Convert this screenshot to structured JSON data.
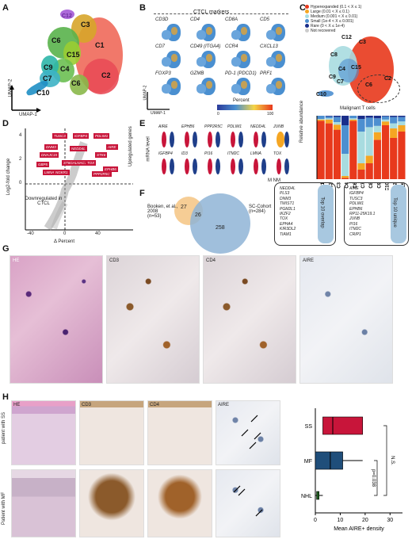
{
  "panels": {
    "A": "A",
    "B": "B",
    "C": "C",
    "D": "D",
    "E": "E",
    "F": "F",
    "G": "G",
    "H": "H"
  },
  "panelA": {
    "clusters": [
      "C12",
      "C3",
      "C6",
      "C1",
      "C15",
      "C9",
      "C4",
      "C7",
      "C2",
      "C6",
      "C10"
    ],
    "axis_x": "UMAP-1",
    "axis_y": "UMAP-2"
  },
  "panelB": {
    "title": "CTCL markers",
    "genes": [
      "CD3D",
      "CD4",
      "CD8A",
      "CD5",
      "CD7",
      "CD49 (ITGA4)",
      "CCR4",
      "CXCL13",
      "FOXP3",
      "GZMB",
      "PD-1 (PDCD1)",
      "PRF1"
    ],
    "axis_x": "UMAP-1",
    "axis_y": "UMAP-2",
    "legend_title": "Percent",
    "legend_min": "0",
    "legend_max": "100"
  },
  "panelC": {
    "legend": [
      {
        "label": "Hyperexpanded (0.1 < X ≤ 1)",
        "color": "#e8391c"
      },
      {
        "label": "Large (0.01 < X ≤ 0.1)",
        "color": "#f5a623"
      },
      {
        "label": "Medium (0.001 < X ≤ 0.01)",
        "color": "#a8dce0"
      },
      {
        "label": "Small (1e-4 < X ≤ 0.001)",
        "color": "#4d8fd0"
      },
      {
        "label": "Rare (0 < X ≤ 1e-4)",
        "color": "#1a2e8a"
      },
      {
        "label": "Not recovered",
        "color": "#cccccc"
      }
    ],
    "umap_labels": [
      "C12",
      "C3",
      "C8",
      "C4",
      "C15",
      "C9",
      "C7",
      "C10",
      "C2",
      "C6"
    ],
    "annotation": "Malignant T cells",
    "ylabel": "Relative abundance"
  },
  "chart_data": [
    {
      "type": "bar",
      "stacked": true,
      "ylabel": "Relative abundance",
      "ylim": [
        0,
        1
      ],
      "categories": [
        "C1",
        "C2",
        "C3",
        "C4",
        "C6",
        "C7",
        "C8",
        "C9",
        "C10",
        "C12",
        "C15"
      ],
      "series": [
        {
          "name": "Hyperexpanded",
          "values": [
            0.92,
            0.88,
            0.78,
            0.02,
            0.92,
            0.15,
            0.25,
            0.62,
            0.85,
            0.65,
            0.75
          ]
        },
        {
          "name": "Large",
          "values": [
            0.02,
            0.06,
            0.08,
            0.03,
            0.02,
            0.1,
            0.12,
            0.12,
            0.06,
            0.15,
            0.1
          ]
        },
        {
          "name": "Medium",
          "values": [
            0.01,
            0.02,
            0.04,
            0.35,
            0.02,
            0.5,
            0.45,
            0.1,
            0.03,
            0.08,
            0.06
          ]
        },
        {
          "name": "Small",
          "values": [
            0.05,
            0.03,
            0.08,
            0.45,
            0.04,
            0.2,
            0.15,
            0.12,
            0.05,
            0.1,
            0.07
          ]
        },
        {
          "name": "Rare",
          "values": [
            0,
            0.01,
            0.02,
            0.15,
            0,
            0.05,
            0.03,
            0.04,
            0.01,
            0.02,
            0.02
          ]
        }
      ]
    },
    {
      "type": "box",
      "orientation": "horizontal",
      "xlabel": "Mean AIRE+ density",
      "xlim": [
        0,
        35
      ],
      "xticks": [
        0,
        10,
        20,
        30
      ],
      "categories": [
        "SS",
        "MF",
        "NHL"
      ],
      "boxes": [
        {
          "name": "SS",
          "min": 3,
          "q1": 3,
          "median": 7,
          "q3": 19,
          "max": 19,
          "color": "#c8153a"
        },
        {
          "name": "MF",
          "min": 0,
          "q1": 0,
          "median": 6,
          "q3": 11,
          "max": 19,
          "color": "#1f4e7a"
        },
        {
          "name": "NHL",
          "min": 0,
          "q1": 0.5,
          "median": 1,
          "q3": 1.5,
          "max": 3,
          "color": "#3aa53a"
        }
      ],
      "annotations": [
        "N.S.",
        "p=0.038"
      ]
    }
  ],
  "panelD": {
    "xlabel": "Δ Percent",
    "ylabel": "Log2-fold change",
    "xticks": [
      "-40",
      "0",
      "40"
    ],
    "yticks": [
      "0",
      "2",
      "4"
    ],
    "up_label": "Upregulated genes",
    "down_label": "Downregulated in CTCL",
    "genes": [
      "TUSC3",
      "IGFBP4",
      "PDLIM1",
      "DNM3",
      "AIRE",
      "NEDD4L",
      "DNAJC15",
      "STK6",
      "GBP5",
      "ST6GALNAC1",
      "TOX",
      "LMNA",
      "NGKR1",
      "EPHB6",
      "PPP2R5C"
    ]
  },
  "panelE": {
    "ylabel": "mRNA level",
    "top": [
      "AIRE",
      "EPHB6",
      "PPP2R5C",
      "PDLIM1",
      "NEDD4L",
      "JUNB"
    ],
    "bottom": [
      "IGFBP4",
      "ID3",
      "PI16",
      "ITM2C",
      "LMNA",
      "TOX"
    ],
    "xlabels": [
      "M",
      "NM",
      "M",
      "NM",
      "M",
      "NM"
    ]
  },
  "panelF": {
    "left_label": "Booken, et al., 2008",
    "left_n": "(n=53)",
    "right_label": "SC-Cohort",
    "right_n": "(n=284)",
    "left_only": "27",
    "overlap": "26",
    "right_only": "258",
    "overlap_title": "Top 10 overlap",
    "overlap_genes": [
      "NEDD4L",
      "PLS3",
      "DNM3",
      "TWIST1",
      "PGM2L1",
      "IKZF2",
      "TOX",
      "EPHA4",
      "KIR3DL2",
      "TIAM1"
    ],
    "unique_title": "Top 10 unique",
    "unique_genes": [
      "AIRE",
      "IGFBP4",
      "TUSC3",
      "PDLIM1",
      "EPHB6",
      "RP11-25K19.1",
      "JUNB",
      "PI16",
      "ITM2C",
      "CRIP1"
    ]
  },
  "panelG": {
    "labels": [
      "HE",
      "CD3",
      "CD4",
      "AIRE"
    ]
  },
  "panelH": {
    "cols": [
      "HE",
      "CD3",
      "CD4",
      "AIRE"
    ],
    "rows": [
      "patient with SS",
      "Patient with MF"
    ]
  }
}
